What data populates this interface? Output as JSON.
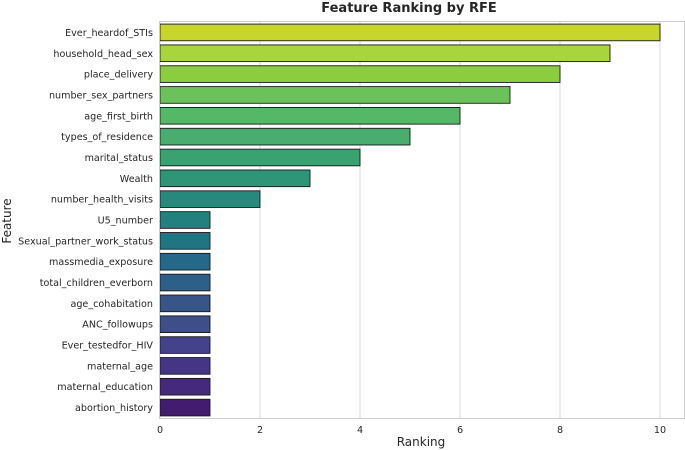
{
  "chart_data": {
    "type": "bar",
    "orientation": "horizontal",
    "title": "Feature Ranking by RFE",
    "xlabel": "Ranking",
    "ylabel": "Feature",
    "xlim": [
      0,
      10.5
    ],
    "xticks": [
      0,
      2,
      4,
      6,
      8,
      10
    ],
    "grid": "vertical",
    "categories": [
      "Ever_heardof_STIs",
      "household_head_sex",
      "place_delivery",
      "number_sex_partners",
      "age_first_birth",
      "types_of_residence",
      "marital_status",
      "Wealth",
      "number_health_visits",
      "U5_number",
      "Sexual_partner_work_status",
      "massmedia_exposure",
      "total_children_everborn",
      "age_cohabitation",
      "ANC_followups",
      "Ever_testedfor_HIV",
      "maternal_age",
      "maternal_education",
      "abortion_history"
    ],
    "values": [
      10,
      9,
      8,
      7,
      6,
      5,
      4,
      3,
      2,
      1,
      1,
      1,
      1,
      1,
      1,
      1,
      1,
      1,
      1
    ],
    "colors": [
      "#c8d52d",
      "#a8d43c",
      "#8ccc3f",
      "#6cc25a",
      "#55b866",
      "#48ad6e",
      "#3aa270",
      "#2e9577",
      "#26897c",
      "#22817f",
      "#217582",
      "#25688a",
      "#2d6089",
      "#375588",
      "#3e4e88",
      "#43428a",
      "#453685",
      "#45297c",
      "#441c6f"
    ]
  }
}
